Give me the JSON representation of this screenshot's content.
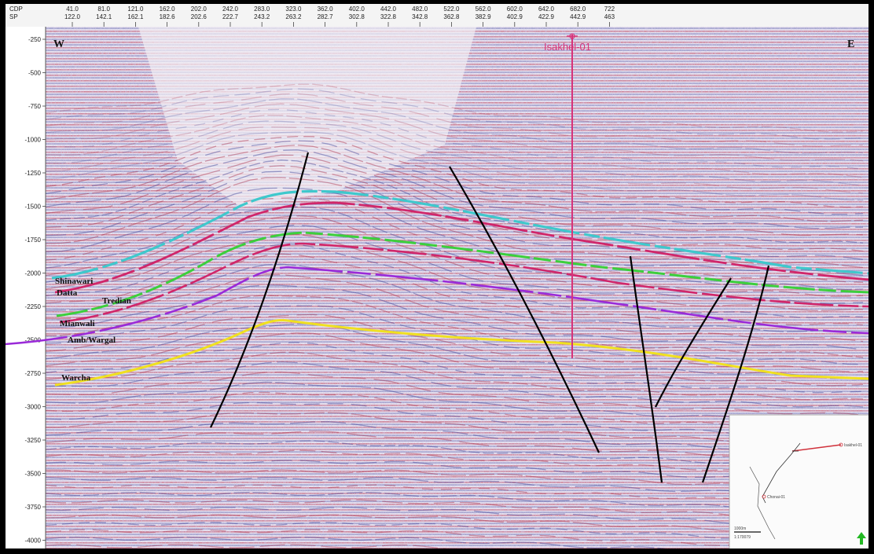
{
  "header": {
    "cdp_label": "CDP",
    "sp_label": "SP",
    "cdp_values": [
      "41.0",
      "81.0",
      "121.0",
      "162.0",
      "202.0",
      "242.0",
      "283.0",
      "323.0",
      "362.0",
      "402.0",
      "442.0",
      "482.0",
      "522.0",
      "562.0",
      "602.0",
      "642.0",
      "682.0",
      "722"
    ],
    "sp_values": [
      "122.0",
      "142.1",
      "162.1",
      "182.6",
      "202.6",
      "222.7",
      "243.2",
      "263.2",
      "282.7",
      "302.8",
      "322.8",
      "342.8",
      "362.8",
      "382.9",
      "402.9",
      "422.9",
      "442.9",
      "463"
    ]
  },
  "axis": {
    "ticks": [
      "-250",
      "-500",
      "-750",
      "-1000",
      "-1250",
      "-1500",
      "-1750",
      "-2000",
      "-2250",
      "-2500",
      "-2750",
      "-3000",
      "-3250",
      "-3500",
      "-3750",
      "-4000"
    ]
  },
  "labels": {
    "west": "W",
    "east": "E",
    "well": "Isakhel-01"
  },
  "horizons": [
    {
      "key": "shinawari",
      "label": "Shinawari",
      "color": "#3fc8cc"
    },
    {
      "key": "datta",
      "label": "Datta",
      "color": "#d0266a"
    },
    {
      "key": "tredian",
      "label": "Tredian",
      "color": "#3ccf3c"
    },
    {
      "key": "mianwali",
      "label": "Mianwali",
      "color": "#d0266a"
    },
    {
      "key": "amb",
      "label": "Amb/Wargal",
      "color": "#9a2ad8"
    },
    {
      "key": "warcha",
      "label": "Warcha",
      "color": "#f0e020"
    }
  ],
  "inset": {
    "well_top": "Isakhel-01",
    "well_bottom": "Chonai-01",
    "scale_text": "1000m",
    "scale_ratio": "1:170079",
    "north_arrow_color": "#22b822"
  }
}
